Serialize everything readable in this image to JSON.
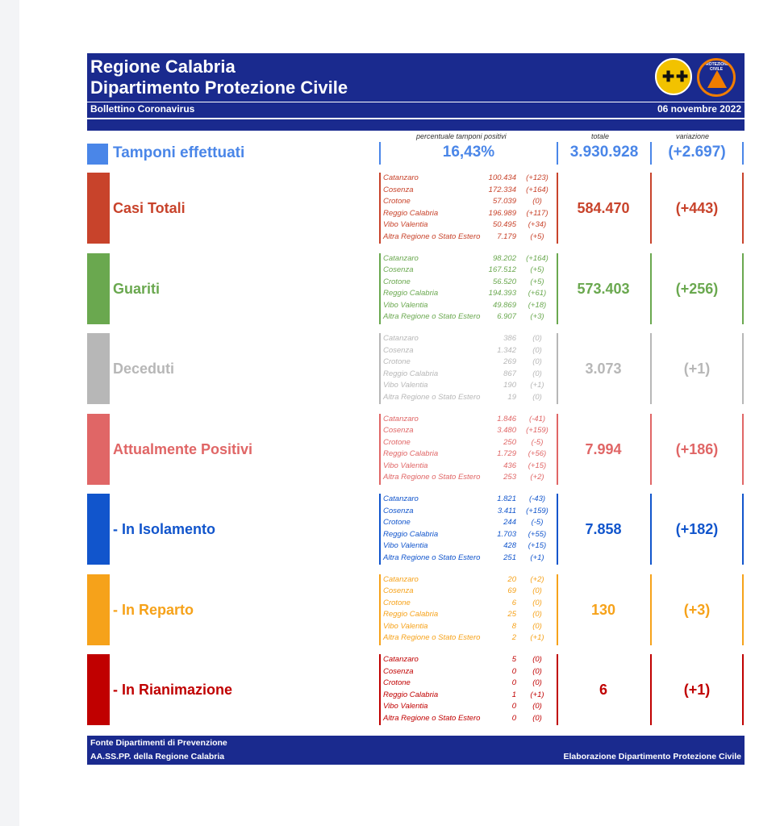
{
  "header": {
    "title_line1": "Regione Calabria",
    "title_line2": "Dipartimento Protezione Civile",
    "subtitle": "Bollettino Coronavirus",
    "date": "06 novembre 2022",
    "logo2_text": "PROTEZIONE CIVILE"
  },
  "columns": {
    "percent_label": "percentuale tamponi positivi",
    "total_label": "totale",
    "variation_label": "variazione"
  },
  "tamponi": {
    "label": "Tamponi effettuati",
    "percent": "16,43%",
    "total": "3.930.928",
    "variation": "(+2.697)",
    "color": "#4a86e8"
  },
  "sections": [
    {
      "label": "Casi Totali",
      "color": "#c8432b",
      "total": "584.470",
      "variation": "(+443)",
      "rows": [
        {
          "name": "Catanzaro",
          "value": "100.434",
          "delta": "(+123)"
        },
        {
          "name": "Cosenza",
          "value": "172.334",
          "delta": "(+164)"
        },
        {
          "name": "Crotone",
          "value": "57.039",
          "delta": "(0)"
        },
        {
          "name": "Reggio Calabria",
          "value": "196.989",
          "delta": "(+117)"
        },
        {
          "name": "Vibo Valentia",
          "value": "50.495",
          "delta": "(+34)"
        },
        {
          "name": "Altra Regione o Stato Estero",
          "value": "7.179",
          "delta": "(+5)"
        }
      ]
    },
    {
      "label": "Guariti",
      "color": "#6aa84f",
      "total": "573.403",
      "variation": "(+256)",
      "rows": [
        {
          "name": "Catanzaro",
          "value": "98.202",
          "delta": "(+164)"
        },
        {
          "name": "Cosenza",
          "value": "167.512",
          "delta": "(+5)"
        },
        {
          "name": "Crotone",
          "value": "56.520",
          "delta": "(+5)"
        },
        {
          "name": "Reggio Calabria",
          "value": "194.393",
          "delta": "(+61)"
        },
        {
          "name": "Vibo Valentia",
          "value": "49.869",
          "delta": "(+18)"
        },
        {
          "name": "Altra Regione o Stato Estero",
          "value": "6.907",
          "delta": "(+3)"
        }
      ]
    },
    {
      "label": "Deceduti",
      "color": "#b7b7b7",
      "total": "3.073",
      "variation": "(+1)",
      "rows": [
        {
          "name": "Catanzaro",
          "value": "386",
          "delta": "(0)"
        },
        {
          "name": "Cosenza",
          "value": "1.342",
          "delta": "(0)"
        },
        {
          "name": "Crotone",
          "value": "269",
          "delta": "(0)"
        },
        {
          "name": "Reggio Calabria",
          "value": "867",
          "delta": "(0)"
        },
        {
          "name": "Vibo Valentia",
          "value": "190",
          "delta": "(+1)"
        },
        {
          "name": "Altra Regione o Stato Estero",
          "value": "19",
          "delta": "(0)"
        }
      ]
    },
    {
      "label": "Attualmente Positivi",
      "color": "#e06666",
      "total": "7.994",
      "variation": "(+186)",
      "rows": [
        {
          "name": "Catanzaro",
          "value": "1.846",
          "delta": "(-41)"
        },
        {
          "name": "Cosenza",
          "value": "3.480",
          "delta": "(+159)"
        },
        {
          "name": "Crotone",
          "value": "250",
          "delta": "(-5)"
        },
        {
          "name": "Reggio Calabria",
          "value": "1.729",
          "delta": "(+56)"
        },
        {
          "name": "Vibo Valentia",
          "value": "436",
          "delta": "(+15)"
        },
        {
          "name": "Altra Regione o Stato Estero",
          "value": "253",
          "delta": "(+2)"
        }
      ]
    },
    {
      "label": " - In Isolamento",
      "color": "#1155cc",
      "total": "7.858",
      "variation": "(+182)",
      "rows": [
        {
          "name": "Catanzaro",
          "value": "1.821",
          "delta": "(-43)"
        },
        {
          "name": "Cosenza",
          "value": "3.411",
          "delta": "(+159)"
        },
        {
          "name": "Crotone",
          "value": "244",
          "delta": "(-5)"
        },
        {
          "name": "Reggio Calabria",
          "value": "1.703",
          "delta": "(+55)"
        },
        {
          "name": "Vibo Valentia",
          "value": "428",
          "delta": "(+15)"
        },
        {
          "name": "Altra Regione o Stato Estero",
          "value": "251",
          "delta": "(+1)"
        }
      ]
    },
    {
      "label": " - In Reparto",
      "color": "#f6a21a",
      "total": "130",
      "variation": "(+3)",
      "rows": [
        {
          "name": "Catanzaro",
          "value": "20",
          "delta": "(+2)"
        },
        {
          "name": "Cosenza",
          "value": "69",
          "delta": "(0)"
        },
        {
          "name": "Crotone",
          "value": "6",
          "delta": "(0)"
        },
        {
          "name": "Reggio Calabria",
          "value": "25",
          "delta": "(0)"
        },
        {
          "name": "Vibo Valentia",
          "value": "8",
          "delta": "(0)"
        },
        {
          "name": "Altra Regione o Stato Estero",
          "value": "2",
          "delta": "(+1)"
        }
      ]
    },
    {
      "label": " - In Rianimazione",
      "color": "#c00000",
      "total": "6",
      "variation": "(+1)",
      "rows": [
        {
          "name": "Catanzaro",
          "value": "5",
          "delta": "(0)"
        },
        {
          "name": "Cosenza",
          "value": "0",
          "delta": "(0)"
        },
        {
          "name": "Crotone",
          "value": "0",
          "delta": "(0)"
        },
        {
          "name": "Reggio Calabria",
          "value": "1",
          "delta": "(+1)"
        },
        {
          "name": "Vibo Valentia",
          "value": "0",
          "delta": "(0)"
        },
        {
          "name": "Altra Regione o Stato Estero",
          "value": "0",
          "delta": "(0)"
        }
      ]
    }
  ],
  "footer": {
    "source_line1": "Fonte Dipartimenti di Prevenzione",
    "source_line2": "AA.SS.PP.  della Regione Calabria",
    "credit": "Elaborazione Dipartimento Protezione Civile"
  }
}
